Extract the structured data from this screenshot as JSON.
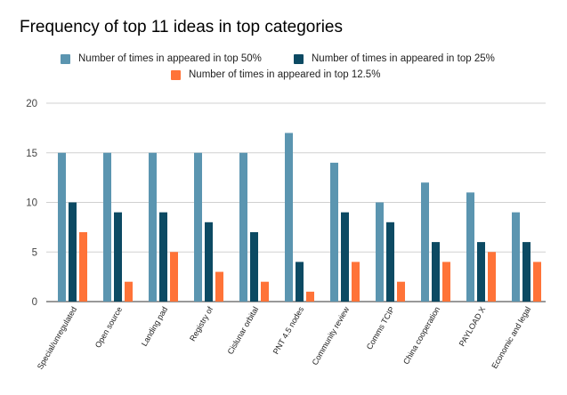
{
  "chart_data": {
    "type": "bar",
    "title": "Frequency of top 11 ideas in top categories",
    "categories": [
      "Special/unregulated",
      "Open source",
      "Landing pad",
      "Registry of",
      "Cislunar orbital",
      "PNT 4.5 nodes",
      "Community review",
      "Comms TCIP",
      "China cooperation",
      "PAYLOAD X",
      "Economic and legal"
    ],
    "series": [
      {
        "name": "Number of times in appeared in top 50%",
        "color": "#5b95b0",
        "values": [
          15,
          15,
          15,
          15,
          15,
          17,
          14,
          10,
          12,
          11,
          9
        ]
      },
      {
        "name": "Number of times in appeared in top 25%",
        "color": "#0c4a63",
        "values": [
          10,
          9,
          9,
          8,
          7,
          4,
          9,
          8,
          6,
          6,
          6
        ]
      },
      {
        "name": "Number of times in appeared in top 12.5%",
        "color": "#ff7338",
        "values": [
          7,
          2,
          5,
          3,
          2,
          1,
          4,
          2,
          4,
          5,
          4
        ]
      }
    ],
    "yticks": [
      0,
      5,
      10,
      15,
      20
    ],
    "ylim": [
      0,
      20
    ],
    "grid": true,
    "legend_position": "top"
  }
}
